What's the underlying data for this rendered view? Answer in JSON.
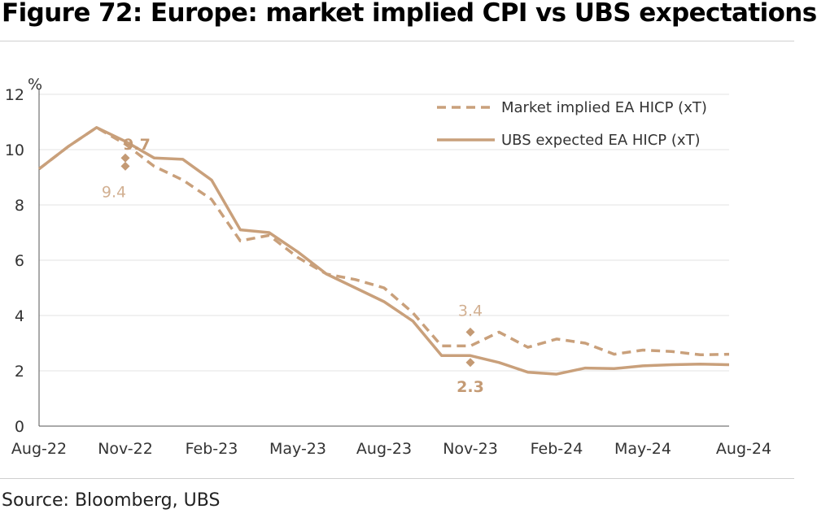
{
  "title": "Figure 72: Europe: market implied CPI vs UBS expectations",
  "source": "Source: Bloomberg, UBS",
  "colors": {
    "series_color": "#c9a07b",
    "annotation_light": "#d2b092",
    "annotation_bold": "#c49a74",
    "grid": "#e3e3e3",
    "axis": "#555555"
  },
  "chart_data": {
    "type": "line",
    "ylabel": "%",
    "ylim": [
      0,
      12
    ],
    "yticks": [
      "0",
      "2",
      "4",
      "6",
      "8",
      "10",
      "12"
    ],
    "xticks": [
      "Aug-22",
      "Nov-22",
      "Feb-23",
      "May-23",
      "Aug-23",
      "Nov-23",
      "Feb-24",
      "May-24",
      "Aug-24"
    ],
    "grid": true,
    "legend_position": "top-right",
    "x": [
      "Aug-22",
      "Sep-22",
      "Oct-22",
      "Nov-22",
      "Dec-22",
      "Jan-23",
      "Feb-23",
      "Mar-23",
      "Apr-23",
      "May-23",
      "Jun-23",
      "Jul-23",
      "Aug-23",
      "Sep-23",
      "Oct-23",
      "Nov-23",
      "Dec-23",
      "Jan-24",
      "Feb-24",
      "Mar-24",
      "Apr-24",
      "May-24",
      "Jun-24",
      "Jul-24",
      "Aug-24"
    ],
    "series": [
      {
        "name": "Market implied EA HICP (xT)",
        "style": "dashed",
        "values": [
          9.3,
          10.1,
          10.8,
          10.2,
          9.4,
          8.9,
          8.2,
          6.7,
          6.9,
          6.1,
          5.5,
          5.3,
          5.0,
          4.1,
          2.9,
          2.9,
          3.4,
          2.85,
          3.15,
          3.0,
          2.6,
          2.75,
          2.7,
          2.58,
          2.6
        ]
      },
      {
        "name": "UBS expected EA HICP (xT)",
        "style": "solid",
        "values": [
          9.3,
          10.1,
          10.8,
          10.3,
          9.7,
          9.65,
          8.9,
          7.1,
          7.0,
          6.3,
          5.5,
          5.0,
          4.5,
          3.8,
          2.55,
          2.55,
          2.3,
          1.95,
          1.88,
          2.1,
          2.08,
          2.18,
          2.22,
          2.24,
          2.22
        ]
      }
    ],
    "annotations": [
      {
        "text": "9.7",
        "x": "Nov-22",
        "value": 9.7,
        "series": 1,
        "bold": true
      },
      {
        "text": "9.4",
        "x": "Nov-22",
        "value": 9.4,
        "series": 0,
        "bold": false
      },
      {
        "text": "3.4",
        "x": "Nov-23",
        "value": 3.4,
        "series": 0,
        "bold": false
      },
      {
        "text": "2.3",
        "x": "Nov-23",
        "value": 2.3,
        "series": 1,
        "bold": true
      }
    ]
  }
}
